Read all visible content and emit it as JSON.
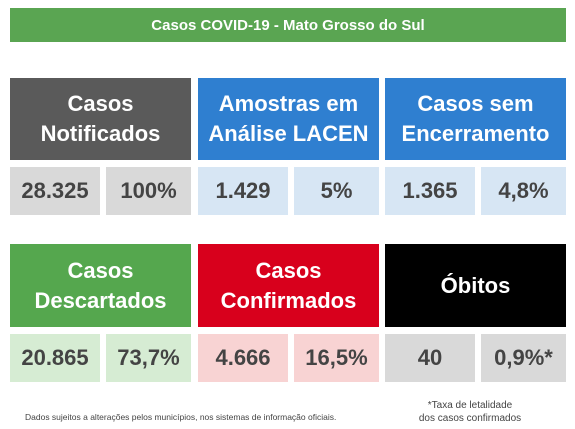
{
  "header": {
    "title": "Casos COVID-19 - Mato Grosso do Sul"
  },
  "panels": [
    {
      "title_lines": [
        "Casos",
        "Notificados"
      ],
      "values": [
        "28.325",
        "100%"
      ]
    },
    {
      "title_lines": [
        "Amostras em",
        "Análise LACEN"
      ],
      "values": [
        "1.429",
        "5%"
      ]
    },
    {
      "title_lines": [
        "Casos sem",
        "Encerramento"
      ],
      "values": [
        "1.365",
        "4,8%"
      ]
    },
    {
      "title_lines": [
        "Casos",
        "Descartados"
      ],
      "values": [
        "20.865",
        "73,7%"
      ]
    },
    {
      "title_lines": [
        "Casos",
        "Confirmados"
      ],
      "values": [
        "4.666",
        "16,5%"
      ]
    },
    {
      "title_lines": [
        "Óbitos"
      ],
      "values": [
        "40",
        "0,9%*"
      ]
    }
  ],
  "footer": {
    "disclaimer": "Dados sujeitos a alterações pelos municípios, nos sistemas de informação oficiais.",
    "note_lines": [
      "*Taxa de letalidade",
      "dos casos confirmados"
    ]
  }
}
